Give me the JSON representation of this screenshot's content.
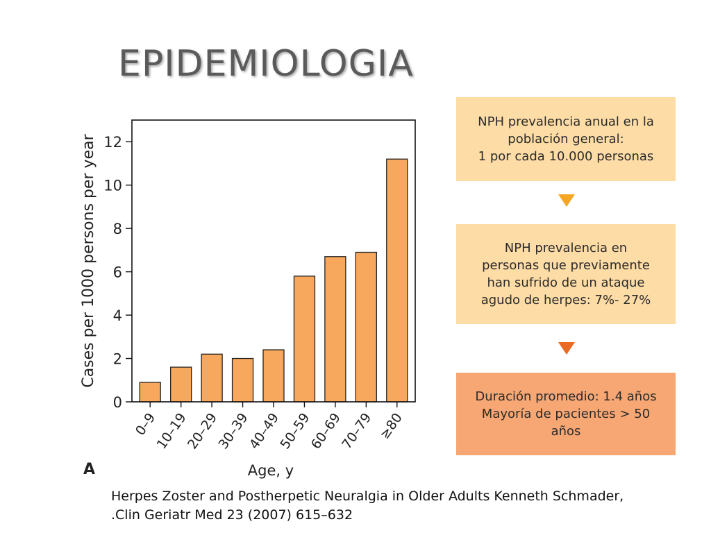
{
  "slide": {
    "title": "EPIDEMIOLOGIA",
    "citation_line1": "Herpes Zoster and Postherpetic Neuralgia in Older Adults Kenneth Schmader,",
    "citation_line2": ".Clin Geriatr Med 23 (2007) 615–632"
  },
  "boxes": [
    {
      "text": "NPH prevalencia anual en la\npoblación general:\n1 por cada 10.000 personas",
      "color": "#fddca6"
    },
    {
      "text": "NPH prevalencia en\npersonas que previamente\nhan sufrido de un ataque\nagudo de herpes: 7%- 27%",
      "color": "#fddca6"
    },
    {
      "text": "Duración promedio: 1.4 años\nMayoría de pacientes > 50\naños",
      "color": "#f7a774"
    }
  ],
  "colors": {
    "bar": "#f7a85c",
    "arrow1": "#f5a623",
    "arrow2": "#ea6a24"
  },
  "chart_data": {
    "type": "bar",
    "panel_label": "A",
    "categories": [
      "0–9",
      "10–19",
      "20–29",
      "30–39",
      "40–49",
      "50–59",
      "60–69",
      "70–79",
      "≥80"
    ],
    "values": [
      0.9,
      1.6,
      2.2,
      2.0,
      2.4,
      5.8,
      6.7,
      6.9,
      11.2
    ],
    "title": "",
    "xlabel": "Age, y",
    "ylabel": "Cases per 1000 persons per year",
    "ylim": [
      0,
      13
    ],
    "yticks": [
      0,
      2,
      4,
      6,
      8,
      10,
      12
    ],
    "grid": false
  }
}
